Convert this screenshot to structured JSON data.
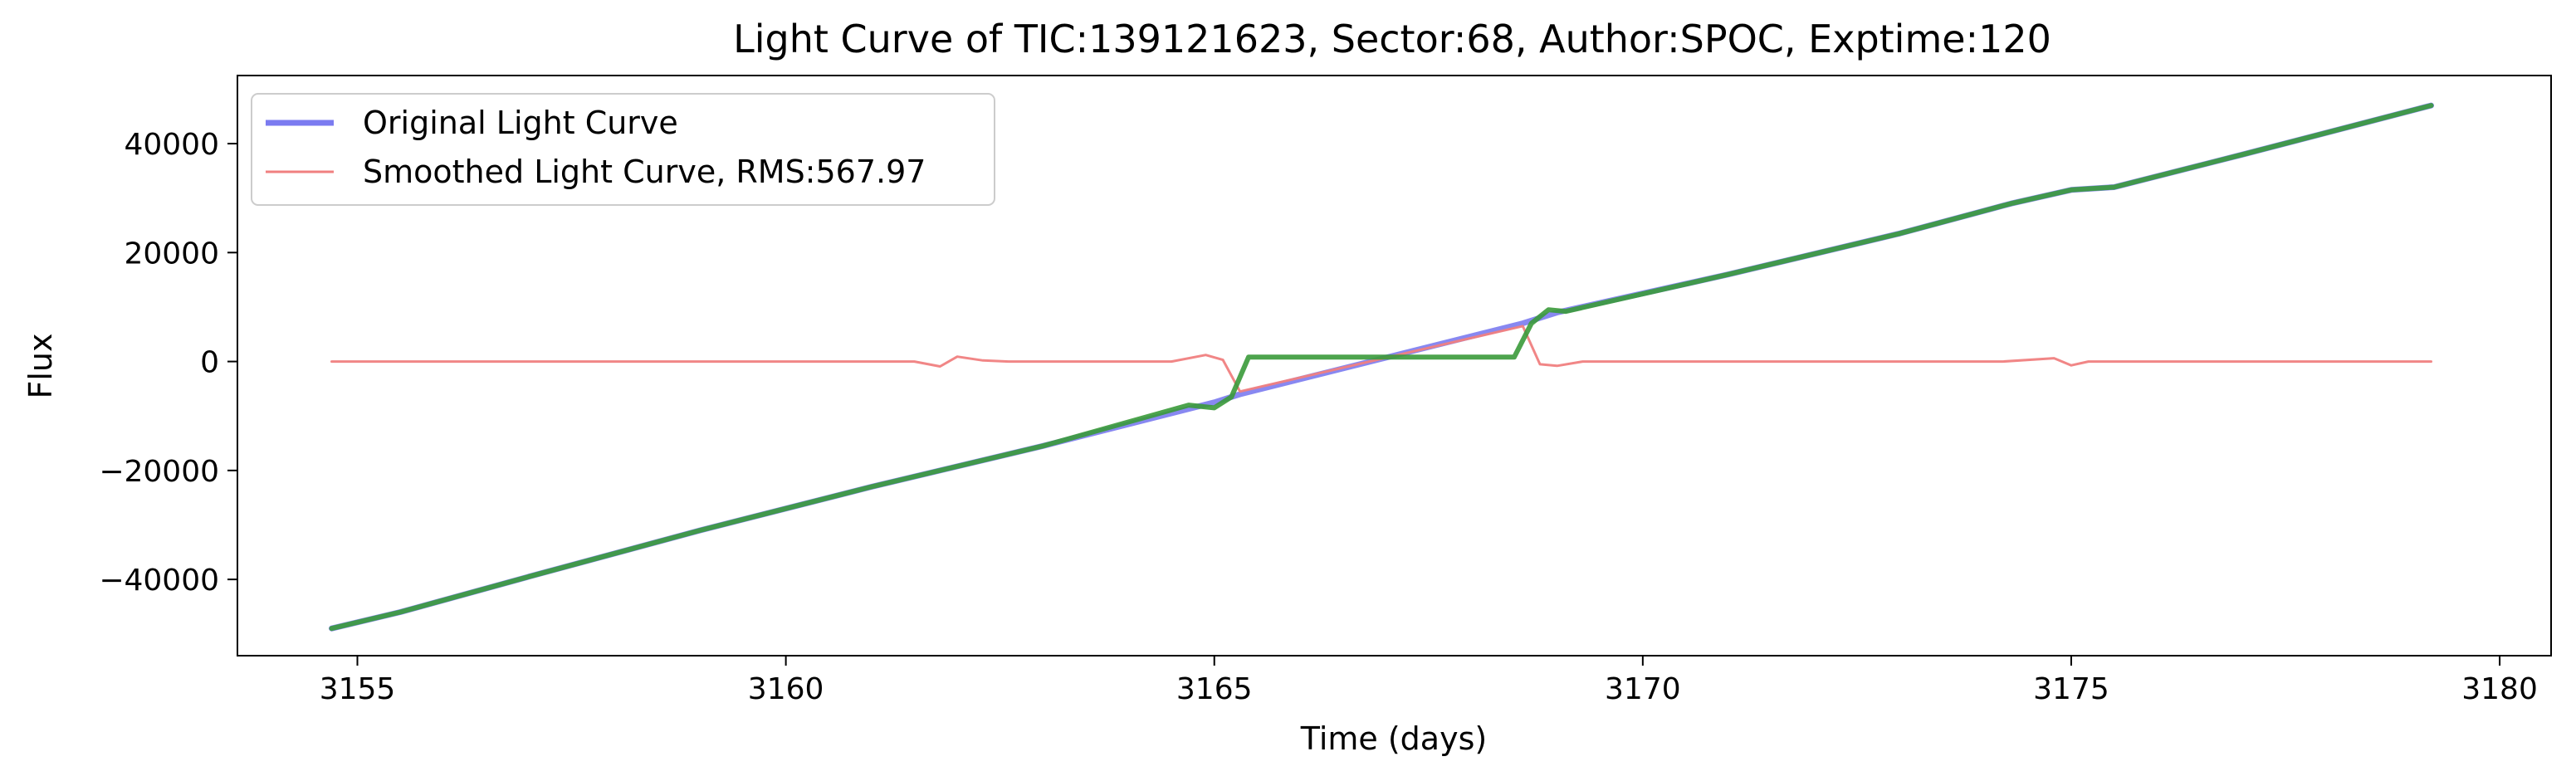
{
  "chart_data": {
    "type": "line",
    "title": "Light Curve of TIC:139121623, Sector:68, Author:SPOC, Exptime:120",
    "xlabel": "Time (days)",
    "ylabel": "Flux",
    "xlim": [
      3153.6,
      3180.6
    ],
    "ylim": [
      -54000,
      52500
    ],
    "xticks": [
      3155,
      3160,
      3165,
      3170,
      3175,
      3180
    ],
    "xtick_labels": [
      "3155",
      "3160",
      "3165",
      "3170",
      "3175",
      "3180"
    ],
    "yticks": [
      -40000,
      -20000,
      0,
      20000,
      40000
    ],
    "ytick_labels": [
      "−40000",
      "−20000",
      "0",
      "20000",
      "40000"
    ],
    "grid": false,
    "legend_position": "top-left",
    "legend": [
      "Original Light Curve",
      "Smoothed Light Curve, RMS:567.97"
    ],
    "series": [
      {
        "name": "Original Light Curve",
        "color": "#7b7bf0",
        "x": [
          3154.7,
          3155.5,
          3157,
          3159,
          3161,
          3163,
          3165,
          3165.3,
          3168.6,
          3169,
          3171,
          3173,
          3174.3,
          3175,
          3175.5,
          3177,
          3179.2
        ],
        "y": [
          -49000,
          -46000,
          -39500,
          -31000,
          -23000,
          -15500,
          -7500,
          -6000,
          7000,
          9000,
          16000,
          23500,
          29000,
          31500,
          32000,
          38000,
          47000
        ]
      },
      {
        "name": "Smoothed Light Curve, RMS:567.97",
        "color": "#f08080",
        "x": [
          3154.7,
          3158,
          3161.5,
          3161.8,
          3162.0,
          3162.3,
          3162.6,
          3163,
          3164.5,
          3164.9,
          3165.1,
          3165.3,
          3168.6,
          3168.8,
          3169.0,
          3169.3,
          3172,
          3174.2,
          3174.8,
          3175.0,
          3175.2,
          3177,
          3179.2
        ],
        "y": [
          0,
          0,
          0,
          -900,
          900,
          200,
          0,
          0,
          0,
          1200,
          300,
          -5500,
          6500,
          -500,
          -800,
          0,
          0,
          0,
          600,
          -700,
          0,
          0,
          0
        ]
      },
      {
        "color": "#3a9a3a",
        "x": [
          3154.7,
          3155.5,
          3157,
          3159,
          3161,
          3163,
          3164.7,
          3165.0,
          3165.2,
          3165.4,
          3168.5,
          3168.7,
          3168.9,
          3169.1,
          3171,
          3173,
          3174.3,
          3175,
          3175.5,
          3177,
          3179.2
        ],
        "y": [
          -49000,
          -46000,
          -39500,
          -31000,
          -23000,
          -15500,
          -8000,
          -8500,
          -6500,
          800,
          800,
          7000,
          9500,
          9200,
          16000,
          23500,
          29000,
          31500,
          32000,
          38000,
          47000
        ]
      }
    ]
  }
}
